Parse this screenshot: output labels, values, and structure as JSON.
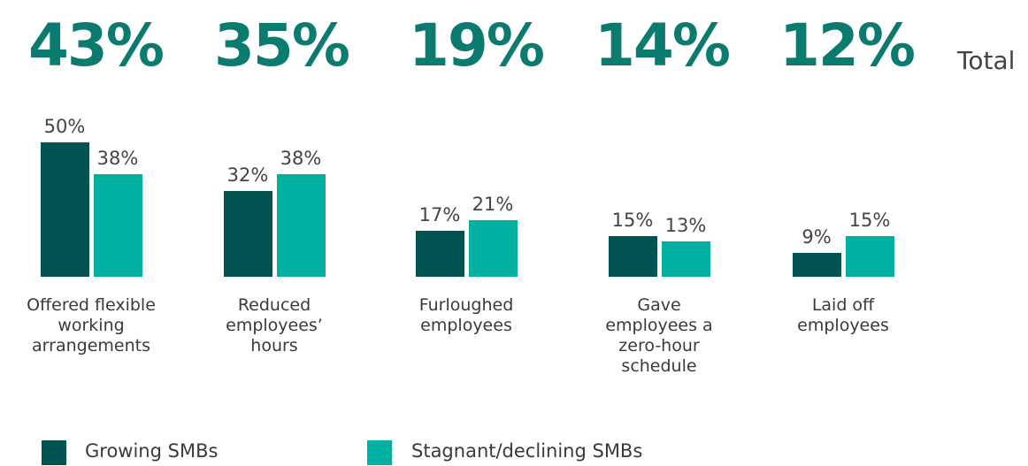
{
  "chart_data": {
    "type": "bar",
    "totals": {
      "label": "Total",
      "values": [
        43,
        35,
        19,
        14,
        12
      ],
      "value_labels": [
        "43%",
        "35%",
        "19%",
        "14%",
        "12%"
      ],
      "color": "#0c7b6f"
    },
    "categories": [
      "Offered flexible working arrangements",
      "Reduced employees’ hours",
      "Furloughed employees",
      "Gave employees a zero-hour schedule",
      "Laid off employees"
    ],
    "series": [
      {
        "name": "Growing SMBs",
        "color": "#005350",
        "values": [
          50,
          32,
          17,
          15,
          9
        ],
        "value_labels": [
          "50%",
          "32%",
          "17%",
          "15%",
          "9%"
        ]
      },
      {
        "name": "Stagnant/declining SMBs",
        "color": "#00b0a0",
        "values": [
          38,
          38,
          21,
          13,
          15
        ],
        "value_labels": [
          "38%",
          "38%",
          "21%",
          "13%",
          "15%"
        ]
      }
    ]
  }
}
